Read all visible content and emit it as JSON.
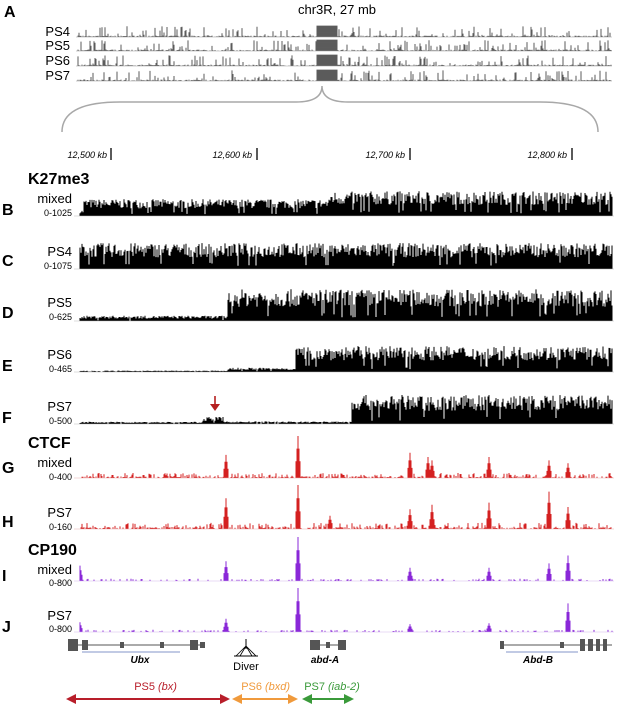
{
  "overview": {
    "panel": "A",
    "title": "chr3R, 27 mb",
    "tracks": [
      {
        "label": "PS4"
      },
      {
        "label": "PS5"
      },
      {
        "label": "PS6"
      },
      {
        "label": "PS7"
      }
    ]
  },
  "coordinates": {
    "unit": "kb",
    "ticks": [
      {
        "label": "12,500 kb",
        "value": 12500
      },
      {
        "label": "12,600 kb",
        "value": 12600
      },
      {
        "label": "12,700 kb",
        "value": 12700
      },
      {
        "label": "12,800 kb",
        "value": 12800
      }
    ]
  },
  "mark_labels": {
    "k27me3": "K27me3",
    "ctcf": "CTCF",
    "cp190": "CP190"
  },
  "colors": {
    "k27me3": "#000000",
    "ctcf": "#d42020",
    "cp190": "#8a28d8",
    "arrow_ps5": "#b81e2a",
    "arrow_ps6": "#f09a3c",
    "arrow_ps7": "#3a9a3a",
    "marker_arrow": "#b52020"
  },
  "tracks": [
    {
      "panel": "B",
      "mark": "K27me3",
      "label": "mixed",
      "range": "0-1025"
    },
    {
      "panel": "C",
      "mark": "K27me3",
      "label": "PS4",
      "range": "0-1075"
    },
    {
      "panel": "D",
      "mark": "K27me3",
      "label": "PS5",
      "range": "0-625"
    },
    {
      "panel": "E",
      "mark": "K27me3",
      "label": "PS6",
      "range": "0-465"
    },
    {
      "panel": "F",
      "mark": "K27me3",
      "label": "PS7",
      "range": "0-500"
    },
    {
      "panel": "G",
      "mark": "CTCF",
      "label": "mixed",
      "range": "0-400"
    },
    {
      "panel": "H",
      "mark": "CTCF",
      "label": "PS7",
      "range": "0-160"
    },
    {
      "panel": "I",
      "mark": "CP190",
      "label": "mixed",
      "range": "0-800"
    },
    {
      "panel": "J",
      "mark": "CP190",
      "label": "PS7",
      "range": "0-800"
    }
  ],
  "genes": [
    {
      "name": "Ubx"
    },
    {
      "name": "abd-A"
    },
    {
      "name": "Abd-B"
    }
  ],
  "diver_label": "Diver",
  "domains": [
    {
      "name": "PS5",
      "qualifier": "(bx)"
    },
    {
      "name": "PS6",
      "qualifier": "(bxd)"
    },
    {
      "name": "PS7",
      "qualifier": "(iab-2)"
    }
  ]
}
